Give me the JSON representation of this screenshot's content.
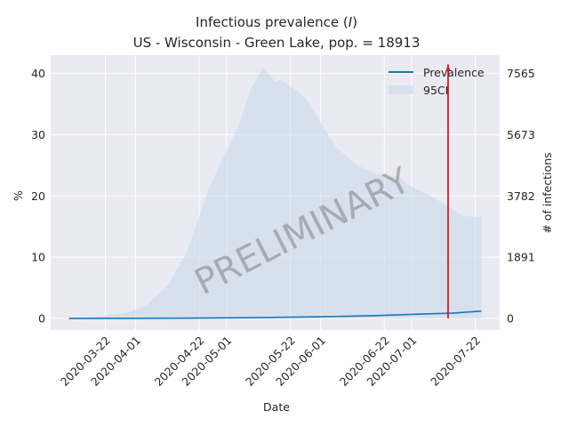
{
  "chart_data": {
    "type": "area",
    "title_main": "Infectious prevalence (",
    "title_var": "I",
    "title_close": ")",
    "subtitle": "US - Wisconsin - Green Lake, pop. = 18913",
    "xlabel": "Date",
    "ylabel": "%",
    "y2label": "# of infections",
    "ylim": [
      -1.9,
      43
    ],
    "yticks": [
      0,
      10,
      20,
      30,
      40
    ],
    "y2ticks": [
      "0",
      "1891",
      "3782",
      "5673",
      "7565"
    ],
    "xlim": [
      "2020-03-04",
      "2020-07-30"
    ],
    "xticks": [
      "2020-03-22",
      "2020-04-01",
      "2020-04-22",
      "2020-05-01",
      "2020-05-22",
      "2020-06-01",
      "2020-06-22",
      "2020-07-01",
      "2020-07-22"
    ],
    "grid": true,
    "legend_position": "top-right",
    "legend": [
      "Prevalence",
      "95CI"
    ],
    "watermark": "PRELIMINARY",
    "marker_date": "2020-07-13",
    "colors": {
      "prevalence": "#1f77b4",
      "ci": "#c6d8ea",
      "marker": "#e31a1c",
      "background": "#eaeaf2"
    },
    "prevalence": {
      "x": [
        "2020-03-10",
        "2020-03-31",
        "2020-04-20",
        "2020-05-10",
        "2020-05-30",
        "2020-06-19",
        "2020-07-04",
        "2020-07-14",
        "2020-07-24"
      ],
      "y": [
        0.0,
        0.02,
        0.05,
        0.12,
        0.25,
        0.45,
        0.7,
        0.85,
        1.2
      ]
    },
    "ci_upper": {
      "x": [
        "2020-03-10",
        "2020-03-20",
        "2020-03-30",
        "2020-04-05",
        "2020-04-12",
        "2020-04-18",
        "2020-04-25",
        "2020-05-01",
        "2020-05-05",
        "2020-05-09",
        "2020-05-13",
        "2020-05-17",
        "2020-05-19",
        "2020-05-22",
        "2020-05-27",
        "2020-06-01",
        "2020-06-06",
        "2020-06-13",
        "2020-06-20",
        "2020-06-27",
        "2020-07-01",
        "2020-07-08",
        "2020-07-14",
        "2020-07-18",
        "2020-07-24"
      ],
      "y": [
        0.0,
        0.3,
        1.0,
        2.3,
        5.6,
        11.0,
        21.0,
        27.5,
        31.5,
        37.5,
        41.0,
        38.7,
        39.0,
        38.0,
        36.0,
        32.0,
        28.0,
        25.0,
        23.5,
        23.0,
        21.5,
        19.8,
        18.0,
        16.7,
        16.6
      ]
    },
    "ci_lower": {
      "x": [
        "2020-03-10",
        "2020-07-24"
      ],
      "y": [
        0.0,
        0.0
      ]
    }
  }
}
